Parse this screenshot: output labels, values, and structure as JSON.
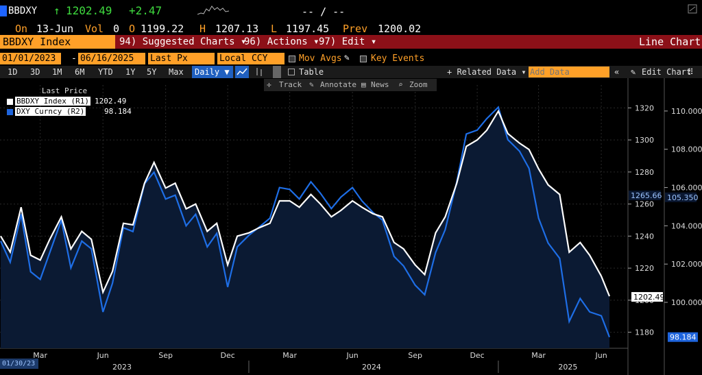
{
  "header": {
    "ticker": "BBDXY",
    "arrow": "↑",
    "last": "1202.49",
    "change": "+2.47",
    "bidask": "-- / --"
  },
  "quote": {
    "on_label": "On",
    "date": "13-Jun",
    "vol_label": "Vol",
    "vol": "0",
    "open_label": "O",
    "open": "1199.22",
    "high_label": "H",
    "high": "1207.13",
    "low_label": "L",
    "low": "1197.45",
    "prev_label": "Prev",
    "prev": "1200.02"
  },
  "menu": {
    "security": "BBDXY Index",
    "suggested": "94) Suggested Charts ▾",
    "actions": "96) Actions ▾",
    "edit": "97) Edit ▾",
    "view": "Line Chart"
  },
  "settings": {
    "start_date": "01/01/2023",
    "dash": "-",
    "end_date": "06/16/2025",
    "field": "Last Px",
    "currency": "Local CCY",
    "mov_avgs": "Mov Avgs",
    "key_events": "Key Events"
  },
  "periods": [
    "1D",
    "3D",
    "1M",
    "6M",
    "YTD",
    "1Y",
    "5Y",
    "Max"
  ],
  "frequency": "Daily ▼",
  "table_label": "Table",
  "related_data": "+ Related Data ▾",
  "add_data_placeholder": "Add Data",
  "edit_chart": "Edit Chart",
  "tools": [
    "Track",
    "Annotate",
    "News",
    "Zoom"
  ],
  "legend": {
    "title": "Last Price",
    "items": [
      {
        "label": "BBDXY Index  (R1)",
        "value": "1202.49",
        "color": "#ffffff"
      },
      {
        "label": "DXY Curncy  (R2)",
        "value": "98.184",
        "color": "#1e64dc"
      }
    ]
  },
  "date_stamp": "01/30/23",
  "colors": {
    "bbdxy": "#ffffff",
    "dxy": "#1e6ee6",
    "fill": "#0b1a33",
    "accent": "#ffa028",
    "menubar": "#8c1018"
  },
  "chart_data": {
    "type": "line",
    "x_months": [
      "Mar",
      "Jun",
      "Sep",
      "Dec",
      "Mar",
      "Jun",
      "Sep",
      "Dec",
      "Mar",
      "Jun"
    ],
    "x_years": [
      "2023",
      "2024",
      "2025"
    ],
    "r1_axis": {
      "ticks": [
        1180,
        1200,
        1220,
        1240,
        1260,
        1280,
        1300,
        1320
      ],
      "range": [
        1170,
        1330
      ]
    },
    "r2_axis": {
      "ticks": [
        "100.000",
        "102.000",
        "104.000",
        "106.000",
        "108.000",
        "110.000"
      ],
      "range": [
        97.6,
        111.0
      ]
    },
    "r1_last": "1202.49",
    "r2_last": "98.184",
    "r1_marker": "1265.66",
    "r2_marker": "105.350",
    "series": [
      {
        "name": "BBDXY Index (R1)",
        "axis": "R1",
        "x": [
          "2023-01-02",
          "2023-01-16",
          "2023-02-01",
          "2023-02-15",
          "2023-03-01",
          "2023-03-15",
          "2023-04-01",
          "2023-04-15",
          "2023-05-01",
          "2023-05-15",
          "2023-06-01",
          "2023-06-15",
          "2023-07-01",
          "2023-07-15",
          "2023-08-01",
          "2023-08-15",
          "2023-09-01",
          "2023-09-15",
          "2023-10-01",
          "2023-10-15",
          "2023-11-01",
          "2023-11-15",
          "2023-12-01",
          "2023-12-15",
          "2024-01-01",
          "2024-01-15",
          "2024-02-01",
          "2024-02-15",
          "2024-03-01",
          "2024-03-15",
          "2024-04-01",
          "2024-04-15",
          "2024-05-01",
          "2024-05-15",
          "2024-06-01",
          "2024-06-15",
          "2024-07-01",
          "2024-07-15",
          "2024-08-01",
          "2024-08-15",
          "2024-09-01",
          "2024-09-15",
          "2024-10-01",
          "2024-10-15",
          "2024-11-01",
          "2024-11-15",
          "2024-12-01",
          "2024-12-15",
          "2025-01-01",
          "2025-01-15",
          "2025-02-01",
          "2025-02-15",
          "2025-03-01",
          "2025-03-15",
          "2025-04-01",
          "2025-04-15",
          "2025-05-01",
          "2025-05-15",
          "2025-06-01",
          "2025-06-13"
        ],
        "values": [
          1240,
          1230,
          1258,
          1228,
          1225,
          1238,
          1252,
          1232,
          1243,
          1238,
          1205,
          1218,
          1248,
          1247,
          1273,
          1286,
          1270,
          1273,
          1257,
          1260,
          1243,
          1248,
          1222,
          1240,
          1242,
          1245,
          1248,
          1262,
          1262,
          1258,
          1266,
          1260,
          1252,
          1256,
          1262,
          1258,
          1254,
          1252,
          1236,
          1232,
          1222,
          1216,
          1242,
          1252,
          1273,
          1296,
          1300,
          1306,
          1318,
          1304,
          1298,
          1294,
          1282,
          1272,
          1266,
          1230,
          1236,
          1228,
          1215,
          1202.49
        ]
      },
      {
        "name": "DXY Curncy (R2)",
        "axis": "R2",
        "x": [
          "2023-01-02",
          "2023-01-16",
          "2023-02-01",
          "2023-02-15",
          "2023-03-01",
          "2023-03-15",
          "2023-04-01",
          "2023-04-15",
          "2023-05-01",
          "2023-05-15",
          "2023-06-01",
          "2023-06-15",
          "2023-07-01",
          "2023-07-15",
          "2023-08-01",
          "2023-08-15",
          "2023-09-01",
          "2023-09-15",
          "2023-10-01",
          "2023-10-15",
          "2023-11-01",
          "2023-11-15",
          "2023-12-01",
          "2023-12-15",
          "2024-01-01",
          "2024-01-15",
          "2024-02-01",
          "2024-02-15",
          "2024-03-01",
          "2024-03-15",
          "2024-04-01",
          "2024-04-15",
          "2024-05-01",
          "2024-05-15",
          "2024-06-01",
          "2024-06-15",
          "2024-07-01",
          "2024-07-15",
          "2024-08-01",
          "2024-08-15",
          "2024-09-01",
          "2024-09-15",
          "2024-10-01",
          "2024-10-15",
          "2024-11-01",
          "2024-11-15",
          "2024-12-01",
          "2024-12-15",
          "2025-01-01",
          "2025-01-15",
          "2025-02-01",
          "2025-02-15",
          "2025-03-01",
          "2025-03-15",
          "2025-04-01",
          "2025-04-15",
          "2025-05-01",
          "2025-05-15",
          "2025-06-01",
          "2025-06-13"
        ],
        "values": [
          103.2,
          102.1,
          104.6,
          101.6,
          101.2,
          102.6,
          104.3,
          101.8,
          103.2,
          102.8,
          99.5,
          101.0,
          103.9,
          103.7,
          106.2,
          106.8,
          105.4,
          105.6,
          104.0,
          104.6,
          102.9,
          103.6,
          100.8,
          102.9,
          103.5,
          103.9,
          104.4,
          106.0,
          105.9,
          105.4,
          106.3,
          105.7,
          104.9,
          105.5,
          106.0,
          105.3,
          104.7,
          104.3,
          102.4,
          101.9,
          100.9,
          100.4,
          102.6,
          103.8,
          106.3,
          108.8,
          109.0,
          109.6,
          110.2,
          108.5,
          107.9,
          107.0,
          104.4,
          103.1,
          102.3,
          99.0,
          100.2,
          99.5,
          99.3,
          98.184
        ]
      }
    ]
  }
}
